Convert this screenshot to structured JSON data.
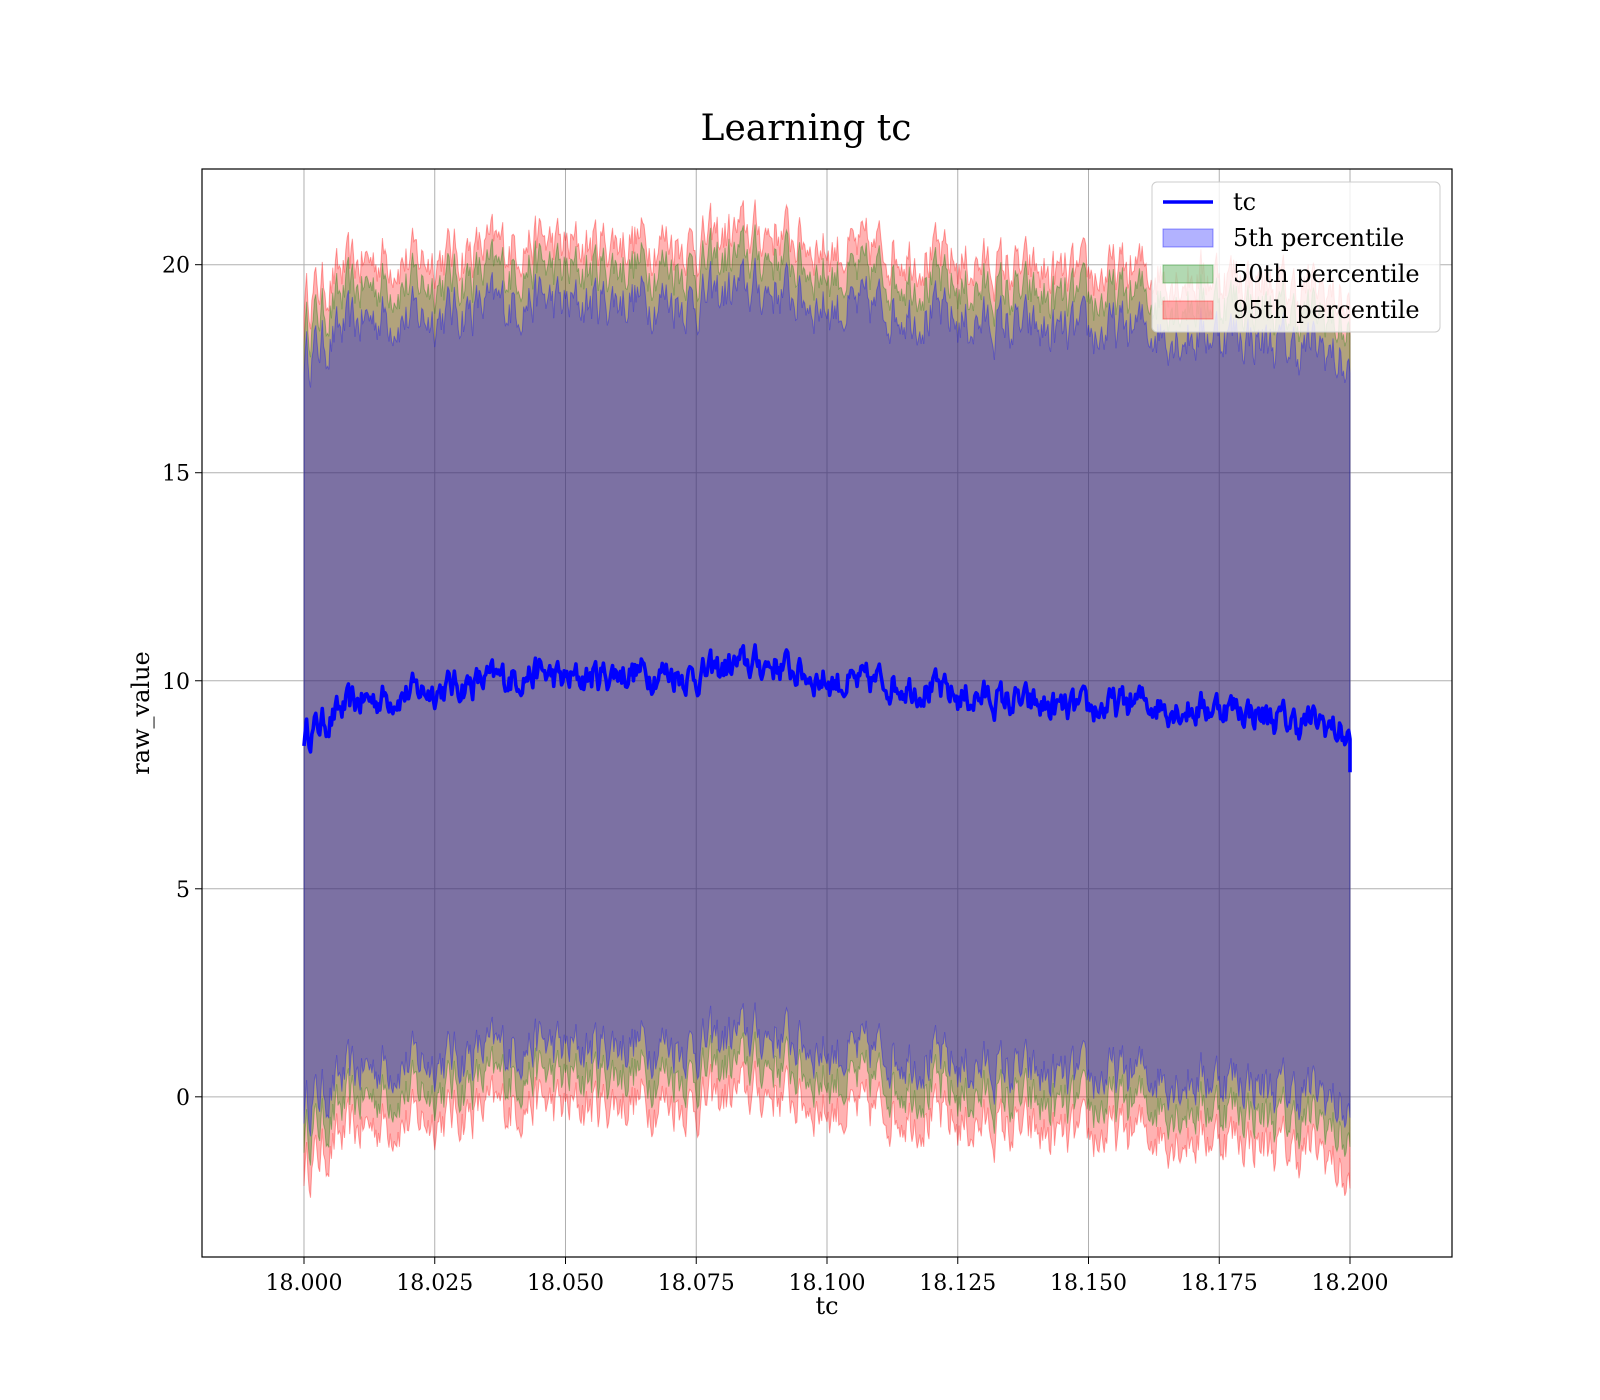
{
  "chart_data": {
    "type": "area",
    "title": "Learning tc",
    "xlabel": "tc",
    "ylabel": "raw_value",
    "xlim": [
      17.9805,
      18.2195
    ],
    "ylim": [
      -3.85,
      22.3
    ],
    "xticks": [
      18.0,
      18.025,
      18.05,
      18.075,
      18.1,
      18.125,
      18.15,
      18.175,
      18.2
    ],
    "xtick_labels": [
      "18.000",
      "18.025",
      "18.050",
      "18.075",
      "18.100",
      "18.125",
      "18.150",
      "18.175",
      "18.200"
    ],
    "yticks": [
      0,
      5,
      10,
      15,
      20
    ],
    "ytick_labels": [
      "0",
      "5",
      "10",
      "15",
      "20"
    ],
    "grid": true,
    "legend_position": "top-right",
    "line": {
      "name": "tc",
      "color": "#0000ff",
      "x": [
        18.0,
        18.005,
        18.01,
        18.015,
        18.02,
        18.025,
        18.03,
        18.035,
        18.04,
        18.045,
        18.05,
        18.055,
        18.06,
        18.065,
        18.07,
        18.075,
        18.08,
        18.085,
        18.09,
        18.095,
        18.1,
        18.105,
        18.11,
        18.115,
        18.12,
        18.125,
        18.13,
        18.135,
        18.14,
        18.145,
        18.15,
        18.155,
        18.16,
        18.165,
        18.17,
        18.175,
        18.18,
        18.185,
        18.19,
        18.195,
        18.2
      ],
      "y": [
        8.7,
        9.1,
        9.5,
        9.6,
        9.7,
        9.8,
        9.9,
        10.0,
        10.1,
        10.2,
        10.0,
        10.1,
        10.2,
        10.2,
        10.2,
        10.1,
        10.3,
        10.4,
        10.4,
        10.2,
        10.0,
        9.9,
        10.0,
        9.9,
        9.8,
        9.6,
        9.6,
        9.5,
        9.4,
        9.3,
        9.3,
        9.4,
        9.5,
        9.4,
        9.3,
        9.4,
        9.3,
        9.1,
        9.0,
        9.0,
        8.6
      ]
    },
    "bands": [
      {
        "name": "95th percentile",
        "color": "#ff0000",
        "opacity": 0.3,
        "upper": [
          19.2,
          19.6,
          20.0,
          20.2,
          20.1,
          20.2,
          20.3,
          20.4,
          20.5,
          20.6,
          20.4,
          20.5,
          20.6,
          20.6,
          20.6,
          20.5,
          20.7,
          20.8,
          20.8,
          20.6,
          20.4,
          20.3,
          20.4,
          20.3,
          20.2,
          20.0,
          20.0,
          19.9,
          19.8,
          19.7,
          19.7,
          19.8,
          19.9,
          19.8,
          19.7,
          19.8,
          19.7,
          19.5,
          19.4,
          19.4,
          19.0
        ],
        "lower": [
          -1.7,
          -1.2,
          -0.8,
          -0.6,
          -0.6,
          -0.5,
          -0.4,
          -0.3,
          -0.2,
          -0.1,
          -0.3,
          -0.2,
          -0.1,
          -0.1,
          -0.1,
          -0.2,
          0.0,
          0.1,
          0.1,
          -0.1,
          -0.3,
          -0.4,
          -0.3,
          -0.4,
          -0.5,
          -0.7,
          -0.7,
          -0.8,
          -0.9,
          -1.0,
          -1.0,
          -0.9,
          -0.8,
          -0.9,
          -1.0,
          -0.9,
          -1.0,
          -1.2,
          -1.3,
          -1.3,
          -2.2
        ]
      },
      {
        "name": "50th percentile",
        "color": "#008000",
        "opacity": 0.3,
        "upper": [
          18.5,
          19.0,
          19.4,
          19.6,
          19.5,
          19.6,
          19.7,
          19.8,
          19.9,
          20.0,
          19.8,
          19.9,
          20.0,
          20.0,
          20.0,
          19.9,
          20.1,
          20.2,
          20.2,
          20.0,
          19.8,
          19.7,
          19.8,
          19.7,
          19.6,
          19.4,
          19.4,
          19.3,
          19.2,
          19.1,
          19.1,
          19.2,
          19.3,
          19.2,
          19.1,
          19.2,
          19.1,
          18.9,
          18.8,
          18.8,
          18.3
        ],
        "lower": [
          -0.9,
          -0.5,
          -0.1,
          0.1,
          0.1,
          0.2,
          0.3,
          0.4,
          0.5,
          0.6,
          0.4,
          0.5,
          0.6,
          0.6,
          0.6,
          0.5,
          0.7,
          0.8,
          0.8,
          0.6,
          0.4,
          0.3,
          0.4,
          0.3,
          0.2,
          0.0,
          0.0,
          -0.1,
          -0.2,
          -0.3,
          -0.3,
          -0.2,
          -0.1,
          -0.2,
          -0.3,
          -0.2,
          -0.3,
          -0.5,
          -0.6,
          -0.6,
          -1.2
        ]
      },
      {
        "name": "5th percentile",
        "color": "#0000ff",
        "opacity": 0.3,
        "upper": [
          17.8,
          18.2,
          18.6,
          18.8,
          18.7,
          18.8,
          18.9,
          19.0,
          19.1,
          19.2,
          19.0,
          19.1,
          19.2,
          19.2,
          19.2,
          19.1,
          19.3,
          19.4,
          19.4,
          19.2,
          19.0,
          18.9,
          19.0,
          18.9,
          18.8,
          18.6,
          18.6,
          18.5,
          18.4,
          18.3,
          18.3,
          18.4,
          18.5,
          18.4,
          18.3,
          18.4,
          18.3,
          18.1,
          18.0,
          18.0,
          17.4
        ],
        "lower": [
          -0.2,
          0.2,
          0.6,
          0.8,
          0.8,
          0.9,
          1.0,
          1.1,
          1.2,
          1.3,
          1.1,
          1.2,
          1.3,
          1.3,
          1.3,
          1.2,
          1.4,
          1.5,
          1.5,
          1.3,
          1.1,
          1.0,
          1.1,
          1.0,
          0.9,
          0.7,
          0.7,
          0.6,
          0.5,
          0.4,
          0.4,
          0.5,
          0.6,
          0.5,
          0.4,
          0.5,
          0.4,
          0.2,
          0.1,
          0.1,
          -0.5
        ]
      }
    ],
    "legend": [
      {
        "label": "tc",
        "kind": "line",
        "color": "#0000ff"
      },
      {
        "label": "5th percentile",
        "kind": "patch",
        "color": "#0000ff"
      },
      {
        "label": "50th percentile",
        "kind": "patch",
        "color": "#008000"
      },
      {
        "label": "95th percentile",
        "kind": "patch",
        "color": "#ff0000"
      }
    ]
  }
}
